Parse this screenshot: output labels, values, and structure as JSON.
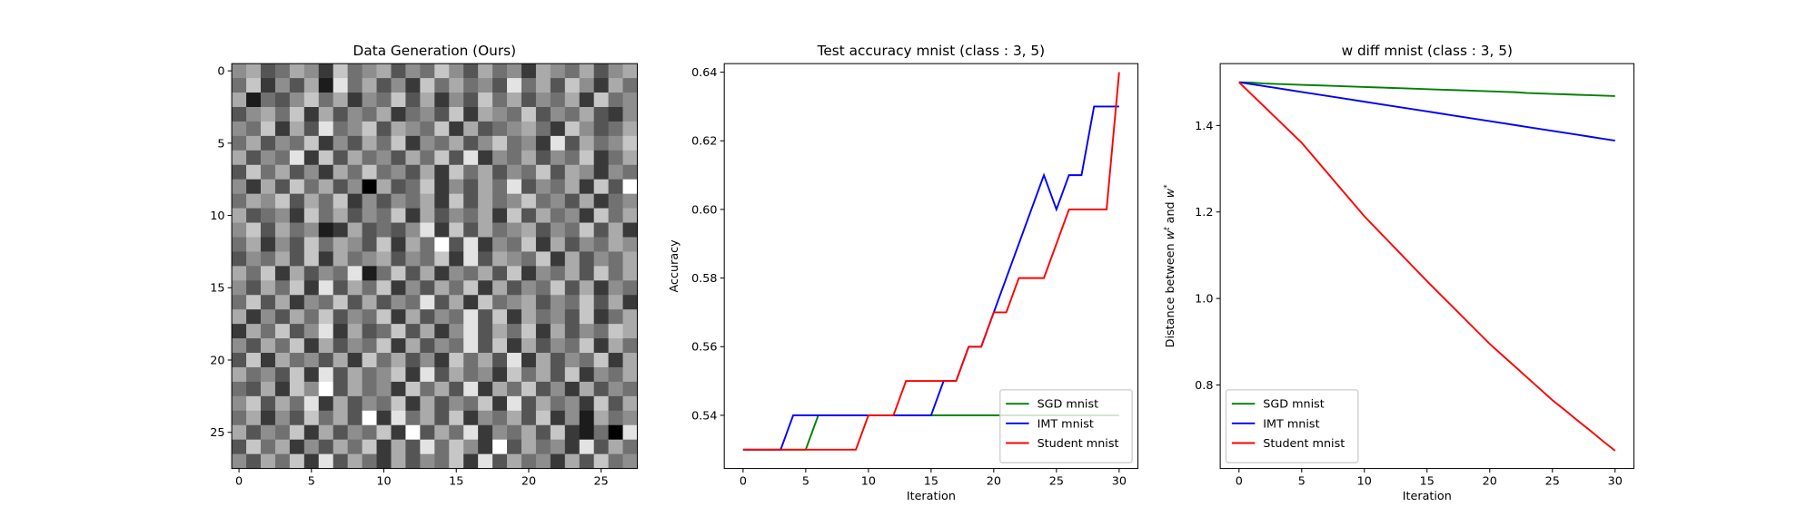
{
  "chart_data": [
    {
      "type": "heatmap",
      "title": "Data Generation (Ours)",
      "xlim": [
        -0.5,
        27.5
      ],
      "ylim": [
        27.5,
        -0.5
      ],
      "xticks": [
        0,
        5,
        10,
        15,
        20,
        25
      ],
      "yticks": [
        0,
        5,
        10,
        15,
        20,
        25
      ],
      "colormap": "gray",
      "z": [
        [
          5,
          6,
          3,
          4,
          6,
          5,
          2,
          7,
          4,
          5,
          6,
          3,
          5,
          4,
          7,
          5,
          3,
          6,
          4,
          5,
          2,
          6,
          5,
          4,
          6,
          3,
          5,
          6
        ],
        [
          4,
          7,
          2,
          5,
          3,
          6,
          1,
          8,
          4,
          6,
          3,
          5,
          2,
          7,
          4,
          6,
          4,
          5,
          3,
          8,
          4,
          6,
          3,
          7,
          5,
          2,
          6,
          4
        ],
        [
          6,
          1,
          4,
          3,
          5,
          7,
          4,
          6,
          2,
          5,
          4,
          7,
          3,
          6,
          2,
          5,
          3,
          7,
          4,
          6,
          3,
          5,
          4,
          6,
          2,
          7,
          4,
          5
        ],
        [
          3,
          5,
          6,
          4,
          7,
          2,
          6,
          3,
          5,
          4,
          6,
          2,
          4,
          5,
          3,
          7,
          2,
          6,
          5,
          4,
          7,
          3,
          5,
          4,
          6,
          3,
          2,
          5
        ],
        [
          5,
          4,
          7,
          2,
          6,
          3,
          8,
          4,
          5,
          7,
          3,
          6,
          5,
          4,
          7,
          2,
          6,
          3,
          4,
          5,
          6,
          4,
          2,
          7,
          5,
          3,
          4,
          6
        ],
        [
          4,
          6,
          3,
          5,
          4,
          7,
          2,
          5,
          3,
          6,
          4,
          7,
          2,
          5,
          4,
          6,
          3,
          5,
          7,
          4,
          5,
          2,
          8,
          3,
          6,
          4,
          5,
          7
        ],
        [
          6,
          3,
          5,
          4,
          8,
          2,
          7,
          3,
          6,
          4,
          5,
          3,
          6,
          4,
          7,
          3,
          8,
          2,
          5,
          4,
          6,
          3,
          5,
          4,
          7,
          2,
          4,
          6
        ],
        [
          3,
          7,
          4,
          6,
          3,
          5,
          2,
          6,
          4,
          7,
          4,
          5,
          3,
          6,
          2,
          7,
          4,
          6,
          3,
          5,
          4,
          7,
          3,
          6,
          5,
          2,
          5,
          4
        ],
        [
          5,
          2,
          6,
          3,
          7,
          4,
          6,
          3,
          5,
          0,
          6,
          3,
          4,
          7,
          2,
          5,
          3,
          6,
          4,
          8,
          3,
          5,
          4,
          6,
          2,
          7,
          3,
          9
        ],
        [
          4,
          6,
          5,
          7,
          3,
          6,
          4,
          7,
          2,
          5,
          3,
          5,
          4,
          6,
          2,
          7,
          3,
          6,
          4,
          5,
          7,
          4,
          5,
          3,
          6,
          2,
          4,
          5
        ],
        [
          6,
          3,
          4,
          5,
          2,
          7,
          4,
          6,
          3,
          5,
          4,
          7,
          2,
          6,
          3,
          5,
          4,
          6,
          2,
          7,
          3,
          6,
          4,
          5,
          2,
          7,
          4,
          6
        ],
        [
          5,
          7,
          3,
          6,
          4,
          5,
          1,
          2,
          6,
          3,
          4,
          3,
          5,
          8,
          2,
          7,
          3,
          6,
          4,
          5,
          6,
          3,
          5,
          4,
          7,
          3,
          6,
          2
        ],
        [
          4,
          6,
          2,
          5,
          3,
          7,
          4,
          6,
          5,
          3,
          7,
          2,
          6,
          4,
          9,
          3,
          8,
          2,
          5,
          4,
          7,
          2,
          6,
          3,
          5,
          4,
          6,
          5
        ],
        [
          3,
          5,
          4,
          6,
          3,
          7,
          2,
          6,
          4,
          5,
          6,
          3,
          5,
          4,
          7,
          2,
          8,
          3,
          6,
          5,
          4,
          7,
          2,
          6,
          3,
          5,
          4,
          6
        ],
        [
          6,
          4,
          7,
          2,
          6,
          3,
          5,
          4,
          8,
          1,
          4,
          7,
          3,
          6,
          2,
          5,
          4,
          6,
          3,
          7,
          2,
          5,
          4,
          6,
          3,
          7,
          4,
          6
        ],
        [
          5,
          3,
          6,
          4,
          7,
          2,
          8,
          3,
          6,
          4,
          7,
          2,
          5,
          3,
          6,
          4,
          7,
          2,
          6,
          3,
          5,
          4,
          7,
          3,
          6,
          2,
          5,
          4
        ],
        [
          4,
          7,
          3,
          6,
          2,
          5,
          4,
          7,
          3,
          6,
          3,
          5,
          4,
          8,
          3,
          6,
          2,
          7,
          4,
          5,
          6,
          3,
          5,
          4,
          7,
          3,
          6,
          2
        ],
        [
          6,
          2,
          5,
          3,
          6,
          4,
          7,
          3,
          5,
          4,
          7,
          2,
          6,
          3,
          5,
          4,
          8,
          3,
          7,
          2,
          6,
          4,
          5,
          3,
          7,
          2,
          4,
          6
        ],
        [
          2,
          6,
          4,
          7,
          3,
          5,
          8,
          2,
          6,
          3,
          4,
          7,
          3,
          6,
          2,
          5,
          8,
          3,
          6,
          4,
          7,
          2,
          6,
          3,
          5,
          4,
          7,
          6
        ],
        [
          5,
          3,
          6,
          4,
          7,
          2,
          6,
          3,
          5,
          4,
          7,
          2,
          6,
          3,
          5,
          4,
          8,
          3,
          7,
          2,
          6,
          3,
          5,
          4,
          7,
          2,
          6,
          4
        ],
        [
          3,
          7,
          2,
          6,
          4,
          5,
          3,
          6,
          2,
          7,
          4,
          6,
          3,
          5,
          2,
          7,
          4,
          6,
          3,
          8,
          2,
          6,
          3,
          5,
          4,
          7,
          2,
          6
        ],
        [
          6,
          4,
          5,
          3,
          7,
          2,
          8,
          3,
          6,
          4,
          5,
          7,
          2,
          8,
          3,
          6,
          4,
          5,
          2,
          7,
          4,
          6,
          3,
          7,
          2,
          5,
          4,
          6
        ],
        [
          4,
          3,
          6,
          2,
          7,
          5,
          9,
          3,
          6,
          4,
          5,
          2,
          7,
          4,
          6,
          3,
          8,
          2,
          6,
          4,
          7,
          3,
          5,
          2,
          6,
          3,
          5,
          4
        ],
        [
          5,
          7,
          3,
          6,
          4,
          8,
          2,
          6,
          3,
          5,
          4,
          7,
          2,
          6,
          3,
          5,
          4,
          7,
          2,
          8,
          3,
          6,
          4,
          5,
          2,
          7,
          3,
          6
        ],
        [
          4,
          6,
          2,
          5,
          3,
          7,
          4,
          6,
          3,
          9,
          2,
          8,
          4,
          6,
          3,
          7,
          2,
          5,
          4,
          6,
          3,
          7,
          2,
          5,
          1,
          6,
          4,
          5
        ],
        [
          6,
          3,
          5,
          4,
          7,
          2,
          6,
          3,
          5,
          4,
          7,
          2,
          9,
          3,
          6,
          4,
          8,
          2,
          5,
          4,
          6,
          3,
          7,
          2,
          1,
          4,
          0,
          8
        ],
        [
          3,
          7,
          4,
          6,
          2,
          5,
          3,
          6,
          4,
          7,
          2,
          6,
          3,
          8,
          4,
          7,
          5,
          2,
          9,
          3,
          6,
          4,
          5,
          2,
          8,
          3,
          6,
          4
        ],
        [
          5,
          3,
          6,
          4,
          7,
          2,
          8,
          3,
          6,
          4,
          2,
          6,
          3,
          5,
          4,
          7,
          2,
          8,
          3,
          6,
          4,
          5,
          2,
          6,
          3,
          7,
          4,
          5
        ]
      ]
    },
    {
      "type": "line",
      "title": "Test accuracy mnist (class : 3, 5)",
      "xlabel": "Iteration",
      "ylabel": "Accuracy",
      "xlim": [
        -1.5,
        31.5
      ],
      "ylim": [
        0.5245,
        0.6425
      ],
      "xticks": [
        0,
        5,
        10,
        15,
        20,
        25,
        30
      ],
      "yticks": [
        0.54,
        0.56,
        0.58,
        {
          "value": 0.6,
          "label": "0.60"
        },
        0.62,
        0.64
      ],
      "legend": "lower right",
      "x": [
        0,
        1,
        2,
        3,
        4,
        5,
        6,
        7,
        8,
        9,
        10,
        11,
        12,
        13,
        14,
        15,
        16,
        17,
        18,
        19,
        20,
        21,
        22,
        23,
        24,
        25,
        26,
        27,
        28,
        29,
        30
      ],
      "series": [
        {
          "name": "SGD mnist",
          "color": "#008000",
          "values": [
            0.53,
            0.53,
            0.53,
            0.53,
            0.53,
            0.53,
            0.54,
            0.54,
            0.54,
            0.54,
            0.54,
            0.54,
            0.54,
            0.54,
            0.54,
            0.54,
            0.54,
            0.54,
            0.54,
            0.54,
            0.54,
            0.54,
            0.54,
            0.54,
            0.54,
            0.54,
            0.54,
            0.54,
            0.54,
            0.54,
            0.54
          ]
        },
        {
          "name": "IMT mnist",
          "color": "#0000ff",
          "values": [
            0.53,
            0.53,
            0.53,
            0.53,
            0.54,
            0.54,
            0.54,
            0.54,
            0.54,
            0.54,
            0.54,
            0.54,
            0.54,
            0.54,
            0.54,
            0.54,
            0.55,
            0.55,
            0.56,
            0.56,
            0.57,
            0.58,
            0.59,
            0.6,
            0.61,
            0.6,
            0.61,
            0.61,
            0.63,
            0.63,
            0.63
          ]
        },
        {
          "name": "Student mnist",
          "color": "#ff0000",
          "values": [
            0.53,
            0.53,
            0.53,
            0.53,
            0.53,
            0.53,
            0.53,
            0.53,
            0.53,
            0.53,
            0.54,
            0.54,
            0.54,
            0.55,
            0.55,
            0.55,
            0.55,
            0.55,
            0.56,
            0.56,
            0.57,
            0.57,
            0.58,
            0.58,
            0.58,
            0.59,
            0.6,
            0.6,
            0.6,
            0.6,
            0.64
          ]
        }
      ]
    },
    {
      "type": "line",
      "title": "w diff mnist (class : 3, 5)",
      "xlabel": "Iteration",
      "ylabel": [
        "Distance between ",
        "w",
        "t",
        " and ",
        "w",
        "*"
      ],
      "xlim": [
        -1.5,
        31.5
      ],
      "ylim": [
        0.607,
        1.543
      ],
      "xticks": [
        0,
        5,
        10,
        15,
        20,
        25,
        30
      ],
      "yticks": [
        0.8,
        {
          "value": 1,
          "label": "1.0"
        },
        1.2,
        1.4
      ],
      "legend": "lower left",
      "x": [
        0,
        1,
        2,
        3,
        4,
        5,
        6,
        7,
        8,
        9,
        10,
        11,
        12,
        13,
        14,
        15,
        16,
        17,
        18,
        19,
        20,
        21,
        22,
        23,
        24,
        25,
        26,
        27,
        28,
        29,
        30
      ],
      "series": [
        {
          "name": "SGD mnist",
          "color": "#008000",
          "values": [
            1.5,
            1.499,
            1.497,
            1.496,
            1.495,
            1.494,
            1.493,
            1.492,
            1.491,
            1.49,
            1.489,
            1.488,
            1.487,
            1.486,
            1.485,
            1.484,
            1.483,
            1.482,
            1.481,
            1.48,
            1.479,
            1.478,
            1.477,
            1.475,
            1.474,
            1.473,
            1.472,
            1.471,
            1.47,
            1.469,
            1.468
          ]
        },
        {
          "name": "IMT mnist",
          "color": "#0000ff",
          "values": [
            1.5,
            1.4955,
            1.491,
            1.4865,
            1.482,
            1.4775,
            1.473,
            1.4685,
            1.464,
            1.4595,
            1.455,
            1.4505,
            1.446,
            1.4415,
            1.437,
            1.4325,
            1.428,
            1.4235,
            1.419,
            1.4145,
            1.41,
            1.4055,
            1.401,
            1.3965,
            1.392,
            1.3875,
            1.383,
            1.3785,
            1.374,
            1.3695,
            1.365
          ]
        },
        {
          "name": "Student mnist",
          "color": "#ff0000",
          "values": [
            1.5,
            1.472,
            1.444,
            1.416,
            1.388,
            1.36,
            1.326,
            1.292,
            1.258,
            1.224,
            1.19,
            1.16,
            1.13,
            1.1,
            1.07,
            1.04,
            1.011,
            0.982,
            0.953,
            0.924,
            0.895,
            0.869,
            0.843,
            0.817,
            0.791,
            0.765,
            0.742,
            0.718,
            0.695,
            0.671,
            0.648
          ]
        }
      ]
    }
  ]
}
